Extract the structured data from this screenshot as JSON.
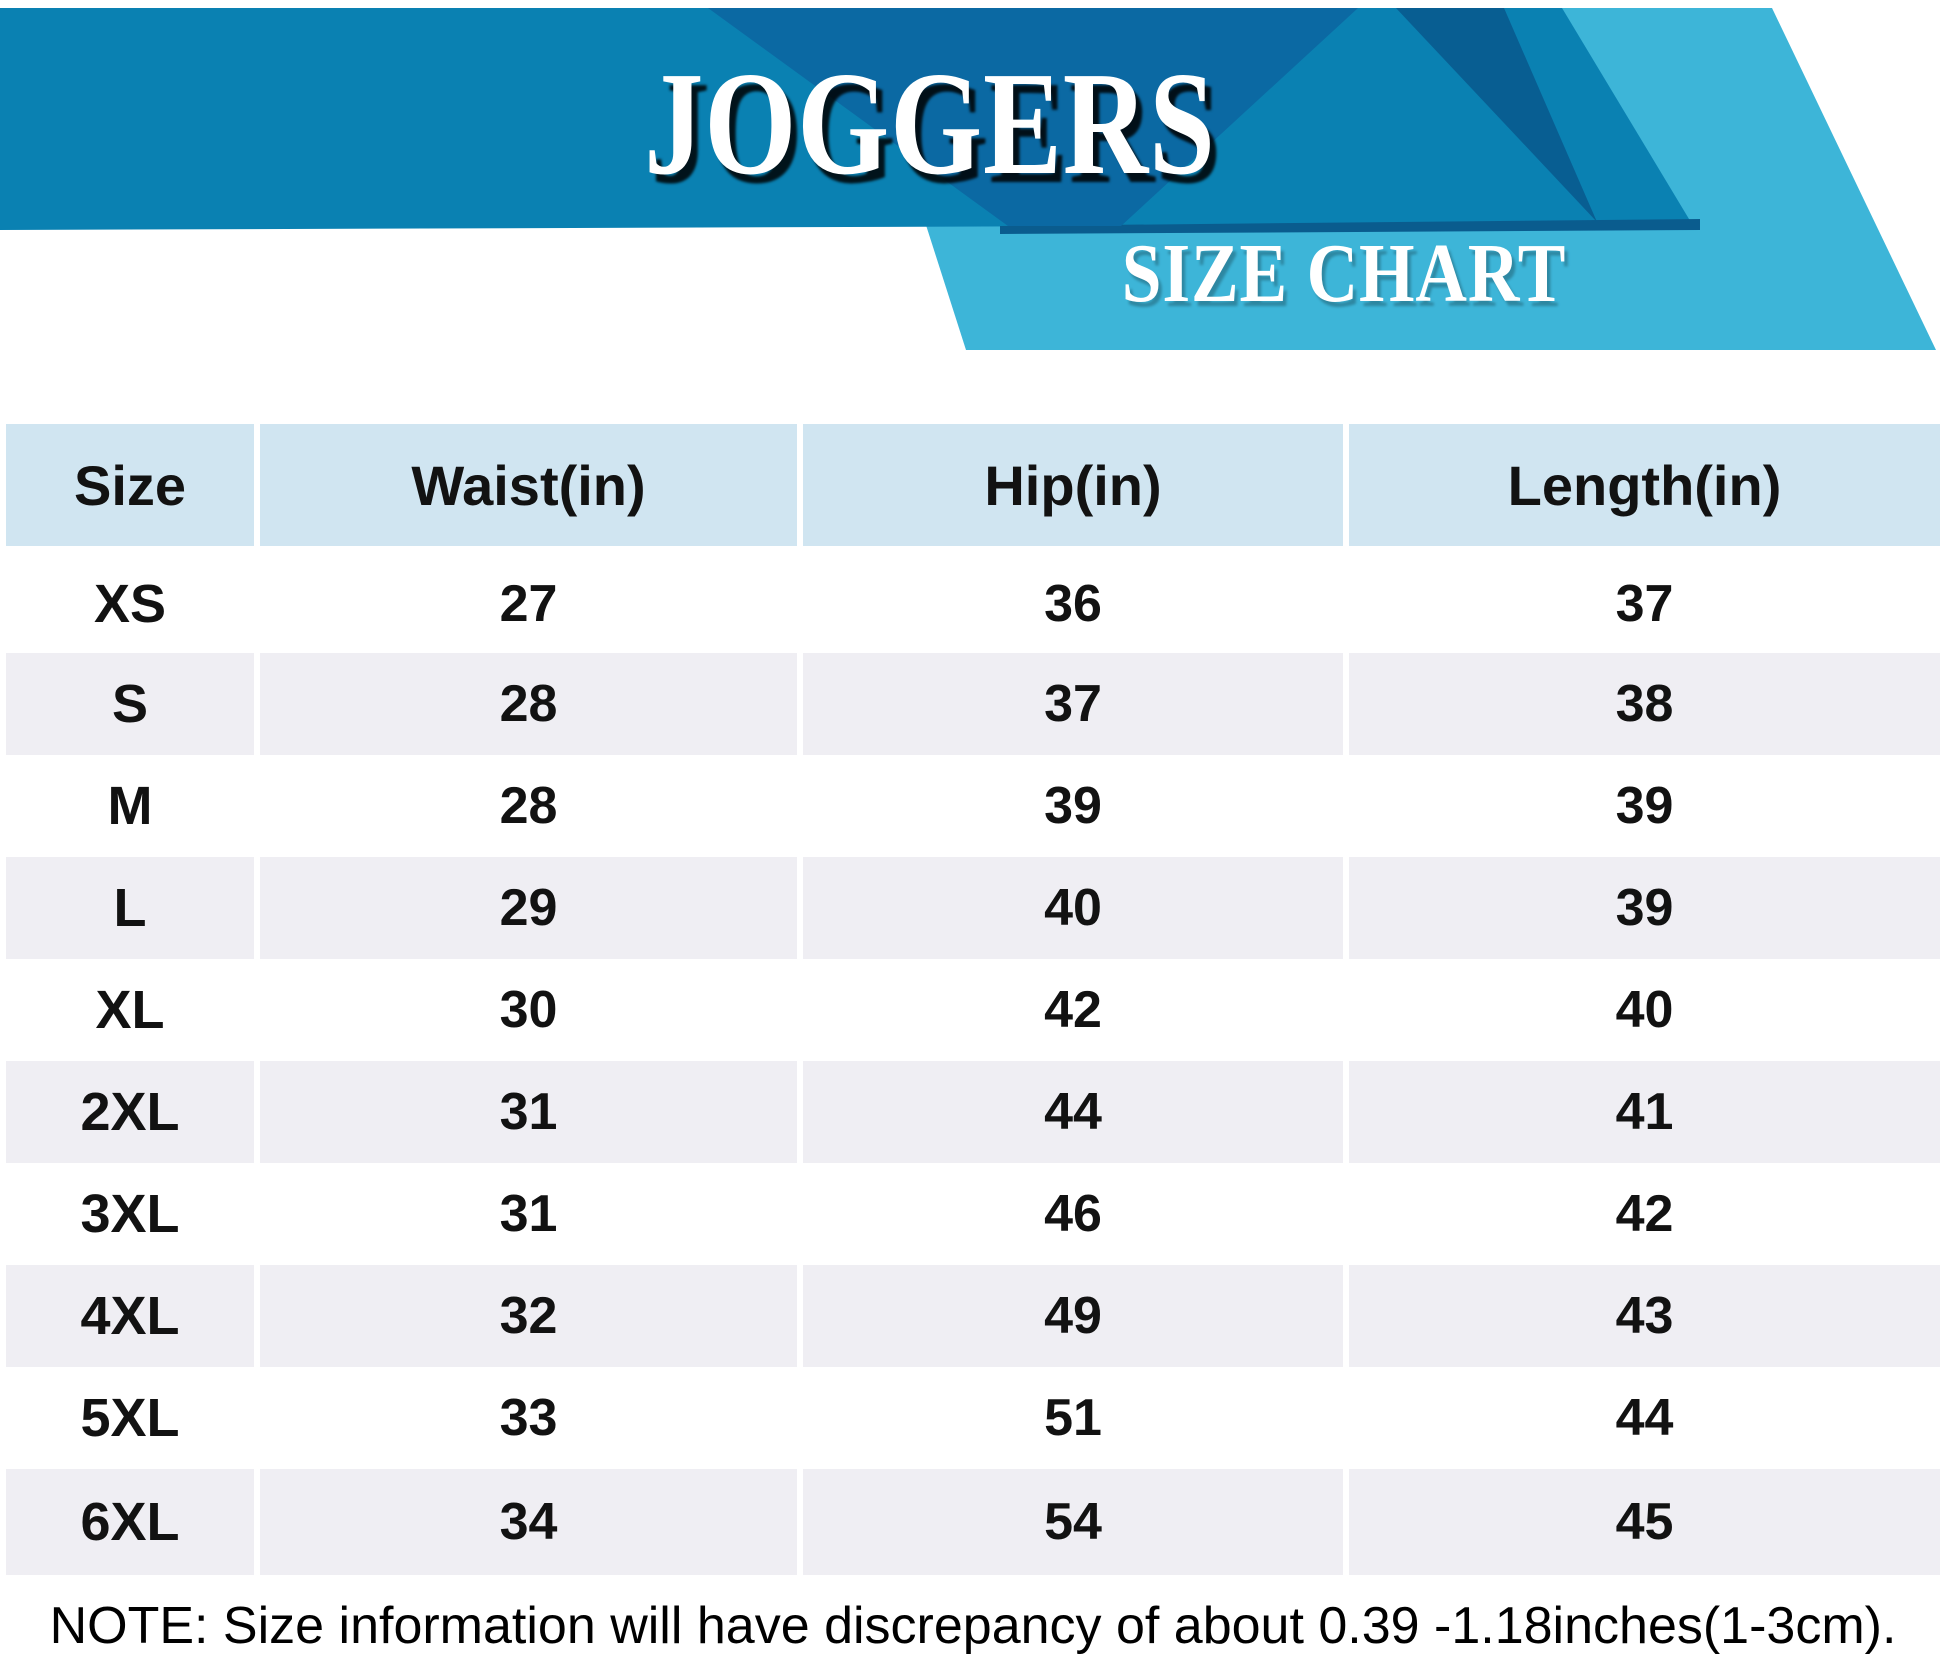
{
  "banner": {
    "title": "JOGGERS",
    "subtitle": "SIZE CHART"
  },
  "colors": {
    "main_blue": "#0a81b2",
    "dark_blue_triangle": "#0b69a3",
    "darker_blue_triangle": "#085e92",
    "dark_bottom_edge": "#0a5c8e",
    "cyan_band": "#3db5d8",
    "header_cell_bg": "#d0e5f1",
    "striped_row_bg": "#efeef3",
    "text": "#121212"
  },
  "chart_data": {
    "type": "table",
    "title": "JOGGERS",
    "subtitle": "SIZE CHART",
    "columns": [
      "Size",
      "Waist(in)",
      "Hip(in)",
      "Length(in)"
    ],
    "rows": [
      [
        "XS",
        "27",
        "36",
        "37"
      ],
      [
        "S",
        "28",
        "37",
        "38"
      ],
      [
        "M",
        "28",
        "39",
        "39"
      ],
      [
        "L",
        "29",
        "40",
        "39"
      ],
      [
        "XL",
        "30",
        "42",
        "40"
      ],
      [
        "2XL",
        "31",
        "44",
        "41"
      ],
      [
        "3XL",
        "31",
        "46",
        "42"
      ],
      [
        "4XL",
        "32",
        "49",
        "43"
      ],
      [
        "5XL",
        "33",
        "51",
        "44"
      ],
      [
        "6XL",
        "34",
        "54",
        "45"
      ]
    ],
    "note": "NOTE: Size information will have discrepancy of about 0.39 -1.18inches(1-3cm)."
  },
  "note": "NOTE: Size information will have discrepancy of about 0.39 -1.18inches(1-3cm)."
}
